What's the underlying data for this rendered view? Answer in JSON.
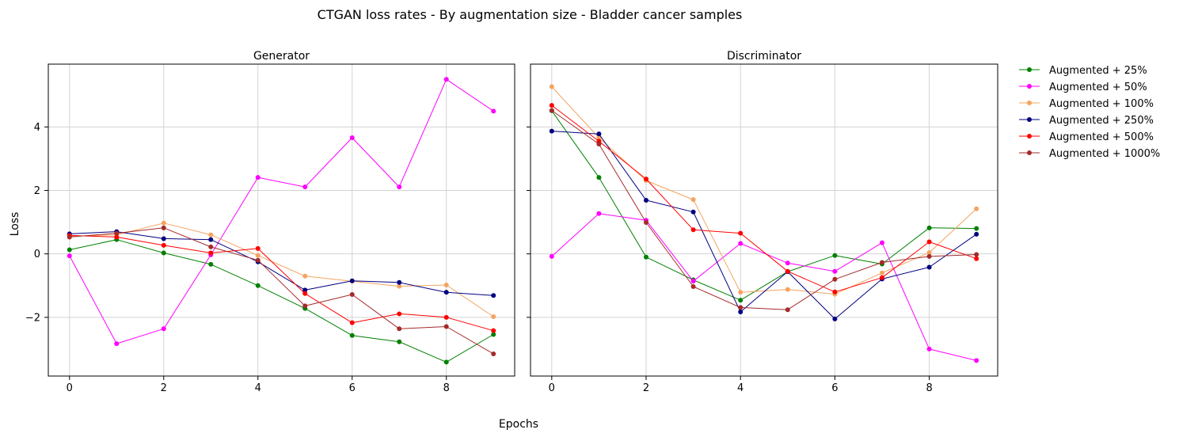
{
  "figure": {
    "suptitle": "CTGAN loss rates - By augmentation size - Bladder cancer samples",
    "supxlabel": "Epochs",
    "supylabel": "Loss"
  },
  "legend": [
    {
      "label": "Augmented + 25%",
      "color": "#008000"
    },
    {
      "label": "Augmented + 50%",
      "color": "#ff00ff"
    },
    {
      "label": "Augmented + 100%",
      "color": "#f4a460"
    },
    {
      "label": "Augmented + 250%",
      "color": "#000080"
    },
    {
      "label": "Augmented + 500%",
      "color": "#ff0000"
    },
    {
      "label": "Augmented + 1000%",
      "color": "#a52a2a"
    }
  ],
  "chart_data": [
    {
      "type": "line",
      "title": "Generator",
      "xlabel": "",
      "ylabel": "",
      "x": [
        0,
        1,
        2,
        3,
        4,
        5,
        6,
        7,
        8,
        9
      ],
      "xticks": [
        0,
        2,
        4,
        6,
        8
      ],
      "yticks": [
        -2,
        0,
        2,
        4
      ],
      "xlim": [
        -0.45,
        9.45
      ],
      "ylim": [
        -3.85,
        5.98
      ],
      "grid": true,
      "series": [
        {
          "name": "Augmented + 25%",
          "color": "#008000",
          "values": [
            0.13,
            0.45,
            0.03,
            -0.33,
            -1.0,
            -1.72,
            -2.57,
            -2.77,
            -3.41,
            -2.54
          ]
        },
        {
          "name": "Augmented + 50%",
          "color": "#ff00ff",
          "values": [
            -0.06,
            -2.83,
            -2.36,
            -0.03,
            2.41,
            2.11,
            3.66,
            2.11,
            5.5,
            4.5
          ]
        },
        {
          "name": "Augmented + 100%",
          "color": "#f4a460",
          "values": [
            0.55,
            0.6,
            0.97,
            0.6,
            -0.05,
            -0.7,
            -0.86,
            -1.02,
            -0.98,
            -1.98
          ]
        },
        {
          "name": "Augmented + 250%",
          "color": "#000080",
          "values": [
            0.63,
            0.7,
            0.48,
            0.45,
            -0.25,
            -1.14,
            -0.85,
            -0.9,
            -1.21,
            -1.31
          ]
        },
        {
          "name": "Augmented + 500%",
          "color": "#ff0000",
          "values": [
            0.58,
            0.53,
            0.27,
            0.03,
            0.17,
            -1.25,
            -2.17,
            -1.89,
            -2.0,
            -2.42
          ]
        },
        {
          "name": "Augmented + 1000%",
          "color": "#a52a2a",
          "values": [
            0.53,
            0.65,
            0.82,
            0.22,
            -0.2,
            -1.64,
            -1.28,
            -2.36,
            -2.29,
            -3.15
          ]
        }
      ]
    },
    {
      "type": "line",
      "title": "Discriminator",
      "xlabel": "",
      "ylabel": "",
      "x": [
        0,
        1,
        2,
        3,
        4,
        5,
        6,
        7,
        8,
        9
      ],
      "xticks": [
        0,
        2,
        4,
        6,
        8
      ],
      "yticks": [
        -2,
        0,
        2,
        4
      ],
      "xlim": [
        -0.45,
        9.45
      ],
      "ylim": [
        -3.85,
        5.98
      ],
      "grid": true,
      "series": [
        {
          "name": "Augmented + 25%",
          "color": "#008000",
          "values": [
            4.51,
            2.41,
            -0.1,
            -0.82,
            -1.46,
            -0.56,
            -0.05,
            -0.32,
            0.82,
            0.8
          ]
        },
        {
          "name": "Augmented + 50%",
          "color": "#ff00ff",
          "values": [
            -0.08,
            1.27,
            1.06,
            -0.86,
            0.33,
            -0.29,
            -0.55,
            0.35,
            -3.0,
            -3.36
          ]
        },
        {
          "name": "Augmented + 100%",
          "color": "#f4a460",
          "values": [
            5.27,
            3.66,
            2.31,
            1.71,
            -1.21,
            -1.12,
            -1.27,
            -0.6,
            0.04,
            1.42
          ]
        },
        {
          "name": "Augmented + 250%",
          "color": "#000080",
          "values": [
            3.87,
            3.78,
            1.69,
            1.32,
            -1.83,
            -0.56,
            -2.05,
            -0.79,
            -0.42,
            0.62
          ]
        },
        {
          "name": "Augmented + 500%",
          "color": "#ff0000",
          "values": [
            4.68,
            3.55,
            2.36,
            0.76,
            0.65,
            -0.55,
            -1.2,
            -0.75,
            0.38,
            -0.15
          ]
        },
        {
          "name": "Augmented + 1000%",
          "color": "#a52a2a",
          "values": [
            4.52,
            3.46,
            0.99,
            -1.03,
            -1.69,
            -1.76,
            -0.8,
            -0.27,
            -0.08,
            -0.02
          ]
        }
      ]
    }
  ]
}
